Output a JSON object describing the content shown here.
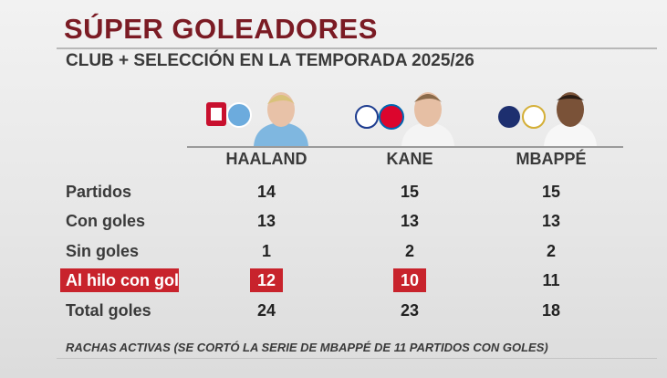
{
  "header": {
    "title": "SÚPER GOLEADORES",
    "subtitle": "CLUB + SELECCIÓN EN LA TEMPORADA 2025/26"
  },
  "table": {
    "columns": [
      "HAALAND",
      "KANE",
      "MBAPPÉ"
    ],
    "rows": [
      {
        "label": "Partidos",
        "values": [
          14,
          15,
          15
        ]
      },
      {
        "label": "Con goles",
        "values": [
          13,
          13,
          13
        ]
      },
      {
        "label": "Sin goles",
        "values": [
          1,
          2,
          2
        ]
      },
      {
        "label": "Al hilo con gol",
        "values": [
          12,
          10,
          11
        ]
      },
      {
        "label": "Total goles",
        "values": [
          24,
          23,
          18
        ]
      }
    ]
  },
  "footnote": "RACHAS ACTIVAS (SE CORTÓ LA SERIE DE MBAPPÉ DE 11 PARTIDOS CON GOLES)"
}
